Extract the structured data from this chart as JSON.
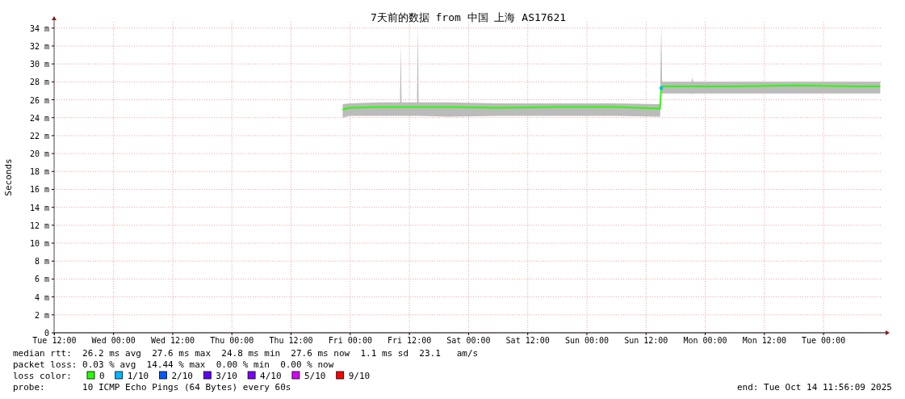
{
  "chart_data": {
    "type": "line",
    "title": "7天前的数据 from 中国 上海 AS17621",
    "ylabel": "Seconds",
    "legend_title": "loss color:",
    "xlim": [
      "2025-10-07T11:56",
      "2025-10-14T11:56"
    ],
    "xticks": [
      {
        "value": "2025-10-07T12:00",
        "label": "Tue 12:00"
      },
      {
        "value": "2025-10-08T00:00",
        "label": "Wed 00:00"
      },
      {
        "value": "2025-10-08T12:00",
        "label": "Wed 12:00"
      },
      {
        "value": "2025-10-09T00:00",
        "label": "Thu 00:00"
      },
      {
        "value": "2025-10-09T12:00",
        "label": "Thu 12:00"
      },
      {
        "value": "2025-10-10T00:00",
        "label": "Fri 00:00"
      },
      {
        "value": "2025-10-10T12:00",
        "label": "Fri 12:00"
      },
      {
        "value": "2025-10-11T00:00",
        "label": "Sat 00:00"
      },
      {
        "value": "2025-10-11T12:00",
        "label": "Sat 12:00"
      },
      {
        "value": "2025-10-12T00:00",
        "label": "Sun 00:00"
      },
      {
        "value": "2025-10-12T12:00",
        "label": "Sun 12:00"
      },
      {
        "value": "2025-10-13T00:00",
        "label": "Mon 00:00"
      },
      {
        "value": "2025-10-13T12:00",
        "label": "Mon 12:00"
      },
      {
        "value": "2025-10-14T00:00",
        "label": "Tue 00:00"
      }
    ],
    "ylim": [
      0,
      34.7
    ],
    "yticks": [
      0,
      {
        "value": 2,
        "label": "2 m"
      },
      {
        "value": 4,
        "label": "4 m"
      },
      {
        "value": 6,
        "label": "6 m"
      },
      {
        "value": 8,
        "label": "8 m"
      },
      {
        "value": 10,
        "label": "10 m"
      },
      {
        "value": 12,
        "label": "12 m"
      },
      {
        "value": 14,
        "label": "14 m"
      },
      {
        "value": 16,
        "label": "16 m"
      },
      {
        "value": 18,
        "label": "18 m"
      },
      {
        "value": 20,
        "label": "20 m"
      },
      {
        "value": 22,
        "label": "22 m"
      },
      {
        "value": 24,
        "label": "24 m"
      },
      {
        "value": 26,
        "label": "26 m"
      },
      {
        "value": 28,
        "label": "28 m"
      },
      {
        "value": 30,
        "label": "30 m"
      },
      {
        "value": 32,
        "label": "32 m"
      },
      {
        "value": 34,
        "label": "34 m"
      }
    ],
    "grid": true,
    "legend": "bottom",
    "series": [
      {
        "name": "0",
        "color": "#26ff00",
        "x": [
          "2025-10-09T22:28",
          "2025-10-09T23:46",
          "2025-10-10T06:00",
          "2025-10-10T10:05",
          "2025-10-10T10:15",
          "2025-10-10T10:25",
          "2025-10-10T13:32",
          "2025-10-10T13:42",
          "2025-10-10T13:52",
          "2025-10-10T20:00",
          "2025-10-11T06:00",
          "2025-10-11T18:00",
          "2025-10-12T06:00",
          "2025-10-12T14:50",
          "2025-10-12T15:05",
          "2025-10-12T15:15",
          "2025-10-12T21:14",
          "2025-10-12T21:24",
          "2025-10-12T21:34",
          "2025-10-13T06:00",
          "2025-10-13T18:00",
          "2025-10-14T06:00",
          "2025-10-14T11:30"
        ],
        "values": [
          24.9,
          25.1,
          25.2,
          25.2,
          25.2,
          25.2,
          25.2,
          25.2,
          25.2,
          25.2,
          25.1,
          25.2,
          25.2,
          25.0,
          27.3,
          27.5,
          27.5,
          27.5,
          27.5,
          27.5,
          27.6,
          27.5,
          27.5
        ],
        "lower": [
          24.0,
          24.2,
          24.2,
          24.2,
          24.2,
          24.2,
          24.2,
          24.2,
          24.2,
          24.1,
          24.2,
          24.2,
          24.2,
          24.1,
          26.7,
          26.7,
          26.7,
          26.6,
          26.7,
          26.7,
          26.7,
          26.7,
          26.7
        ],
        "upper": [
          25.5,
          25.6,
          25.7,
          25.7,
          32.0,
          25.7,
          25.7,
          34.5,
          25.7,
          25.7,
          25.6,
          25.6,
          25.6,
          25.5,
          34.5,
          28.0,
          28.0,
          28.5,
          28.0,
          28.0,
          28.0,
          28.0,
          28.0
        ]
      },
      {
        "name": "1/10",
        "color": "#00b8ff",
        "type": "scatter",
        "x": [
          "2025-10-12T15:05"
        ],
        "values": [
          27.3
        ]
      },
      {
        "name": "2/10",
        "color": "#0059ff"
      },
      {
        "name": "3/10",
        "color": "#5e00ff"
      },
      {
        "name": "4/10",
        "color": "#7e00ff"
      },
      {
        "name": "5/10",
        "color": "#dd00ff"
      },
      {
        "name": "9/10",
        "color": "#ff0000"
      }
    ],
    "annotations": [
      "median rtt:  26.2 ms avg  27.6 ms max  24.8 ms min  27.6 ms now  1.1 ms sd  23.1   am/s",
      "packet loss: 0.03 % avg  14.44 % max  0.00 % min  0.00 % now",
      "probe:       10 ICMP Echo Pings (64 Bytes) every 60s",
      "end: Tue Oct 14 11:56:09 2025"
    ]
  }
}
